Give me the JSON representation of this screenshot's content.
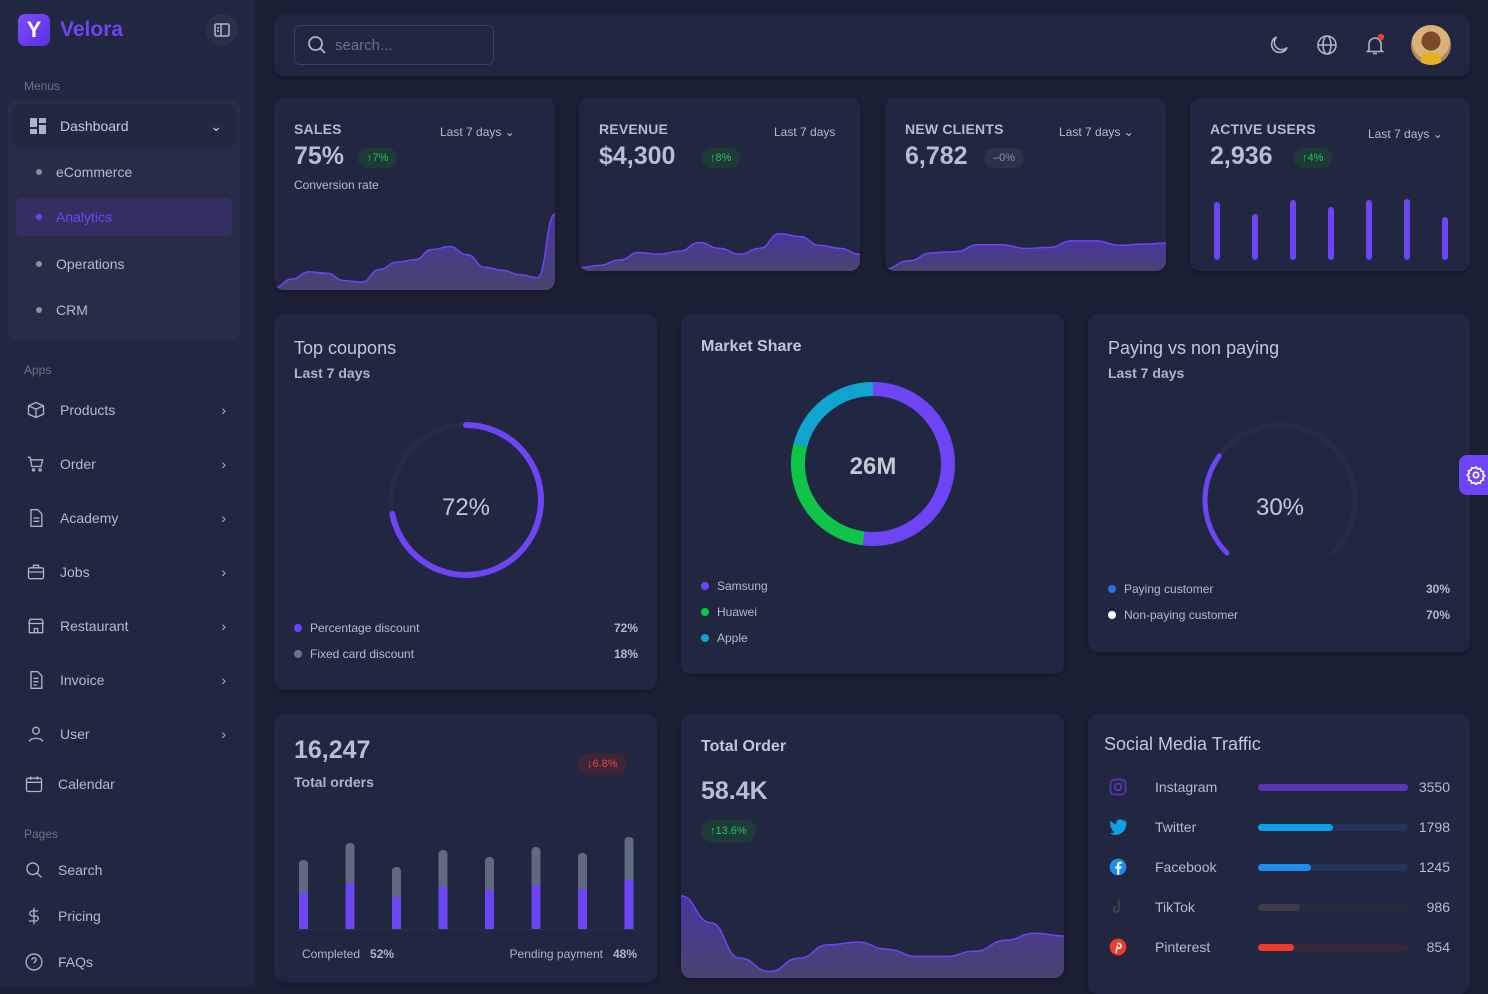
{
  "brand": {
    "name": "Velora",
    "logo_letter": "Y"
  },
  "sidebar": {
    "sections": {
      "menus": "Menus",
      "apps": "Apps",
      "pages": "Pages"
    },
    "dashboard": {
      "label": "Dashboard",
      "children": [
        {
          "label": "eCommerce"
        },
        {
          "label": "Analytics",
          "active": true
        },
        {
          "label": "Operations"
        },
        {
          "label": "CRM"
        }
      ]
    },
    "apps": [
      {
        "label": "Products",
        "icon": "box-icon"
      },
      {
        "label": "Order",
        "icon": "cart-icon"
      },
      {
        "label": "Academy",
        "icon": "document-icon"
      },
      {
        "label": "Jobs",
        "icon": "briefcase-icon"
      },
      {
        "label": "Restaurant",
        "icon": "storefront-icon"
      },
      {
        "label": "Invoice",
        "icon": "invoice-icon"
      },
      {
        "label": "User",
        "icon": "user-icon"
      },
      {
        "label": "Calendar",
        "icon": "calendar-icon"
      }
    ],
    "pages": [
      {
        "label": "Search",
        "icon": "search-icon"
      },
      {
        "label": "Pricing",
        "icon": "dollar-icon"
      },
      {
        "label": "FAQs",
        "icon": "help-circle-icon"
      }
    ]
  },
  "header": {
    "search_placeholder": "search...",
    "notification_dot": true
  },
  "colors": {
    "accent": "#6d45f5",
    "up": "#22c55e",
    "down": "#ef4444",
    "green": "#10c44a",
    "cyan": "#10a5d0"
  },
  "stats": [
    {
      "title": "SALES",
      "value": "75%",
      "change": "↑7%",
      "trend": "up",
      "period": "Last 7 days ⌄",
      "subtitle": "Conversion rate",
      "series": [
        0,
        12,
        22,
        20,
        10,
        8,
        25,
        35,
        38,
        52,
        56,
        45,
        28,
        24,
        18,
        14,
        100
      ]
    },
    {
      "title": "REVENUE",
      "value": "$4,300",
      "change": "↑8%",
      "trend": "up",
      "period": "Last 7 days",
      "series": [
        2,
        6,
        15,
        28,
        25,
        30,
        45,
        35,
        25,
        35,
        60,
        55,
        40,
        35,
        25
      ]
    },
    {
      "title": "NEW CLIENTS",
      "value": "6,782",
      "change": "–0%",
      "trend": "flat",
      "period": "Last 7 days ⌄",
      "series": [
        0,
        15,
        30,
        32,
        45,
        45,
        38,
        40,
        52,
        52,
        44,
        46,
        48
      ]
    },
    {
      "title": "ACTIVE USERS",
      "value": "2,936",
      "change": "↑4%",
      "trend": "up",
      "period": "Last 7 days ⌄",
      "bars": [
        52,
        40,
        54,
        47,
        54,
        55,
        37
      ]
    }
  ],
  "coupons": {
    "title": "Top coupons",
    "subtitle": "Last 7 days",
    "center": "72%",
    "percent": 72,
    "legend": [
      {
        "label": "Percentage discount",
        "value": "72%",
        "color": "#6d45f5"
      },
      {
        "label": "Fixed card discount",
        "value": "18%",
        "color": "#6c7289"
      }
    ]
  },
  "market": {
    "title": "Market Share",
    "center": "26M",
    "legend": [
      {
        "label": "Samsung",
        "color": "#6d45f5",
        "share": 0.52
      },
      {
        "label": "Huawei",
        "color": "#10c44a",
        "share": 0.27
      },
      {
        "label": "Apple",
        "color": "#10a5d0",
        "share": 0.21
      }
    ]
  },
  "paying": {
    "title": "Paying vs non paying",
    "subtitle": "Last 7 days",
    "center": "30%",
    "percent": 30,
    "legend": [
      {
        "label": "Paying customer",
        "value": "30%",
        "color": "#2f6fe4"
      },
      {
        "label": "Non-paying customer",
        "value": "70%",
        "color": "#ffffff"
      }
    ]
  },
  "orders": {
    "value": "16,247",
    "label": "Total orders",
    "change": "↓6.8%",
    "completed_label": "Completed",
    "completed_value": "52%",
    "pending_label": "Pending payment",
    "pending_value": "48%",
    "bars": [
      {
        "total": 69,
        "completed": 36
      },
      {
        "total": 86,
        "completed": 46
      },
      {
        "total": 62,
        "completed": 32
      },
      {
        "total": 79,
        "completed": 42
      },
      {
        "total": 72,
        "completed": 39
      },
      {
        "total": 82,
        "completed": 44
      },
      {
        "total": 76,
        "completed": 40
      },
      {
        "total": 92,
        "completed": 49
      }
    ]
  },
  "total_order": {
    "title": "Total Order",
    "value": "58.4K",
    "change": "↑13.6%",
    "series": [
      90,
      60,
      20,
      5,
      20,
      35,
      38,
      30,
      22,
      22,
      28,
      40,
      48,
      45
    ]
  },
  "social": {
    "title": "Social Media Traffic",
    "items": [
      {
        "name": "Instagram",
        "value": "3550",
        "fraction": 1.0,
        "color": "#5b35b5",
        "track": "#3a2f6a"
      },
      {
        "name": "Twitter",
        "value": "1798",
        "fraction": 0.5,
        "color": "#0ea0e8",
        "track": "#23345a"
      },
      {
        "name": "Facebook",
        "value": "1245",
        "fraction": 0.35,
        "color": "#1d8cec",
        "track": "#23345a"
      },
      {
        "name": "TikTok",
        "value": "986",
        "fraction": 0.28,
        "color": "#3d3f44",
        "track": "#252a3d"
      },
      {
        "name": "Pinterest",
        "value": "854",
        "fraction": 0.24,
        "color": "#ef3b2c",
        "track": "#3a2538"
      }
    ]
  }
}
